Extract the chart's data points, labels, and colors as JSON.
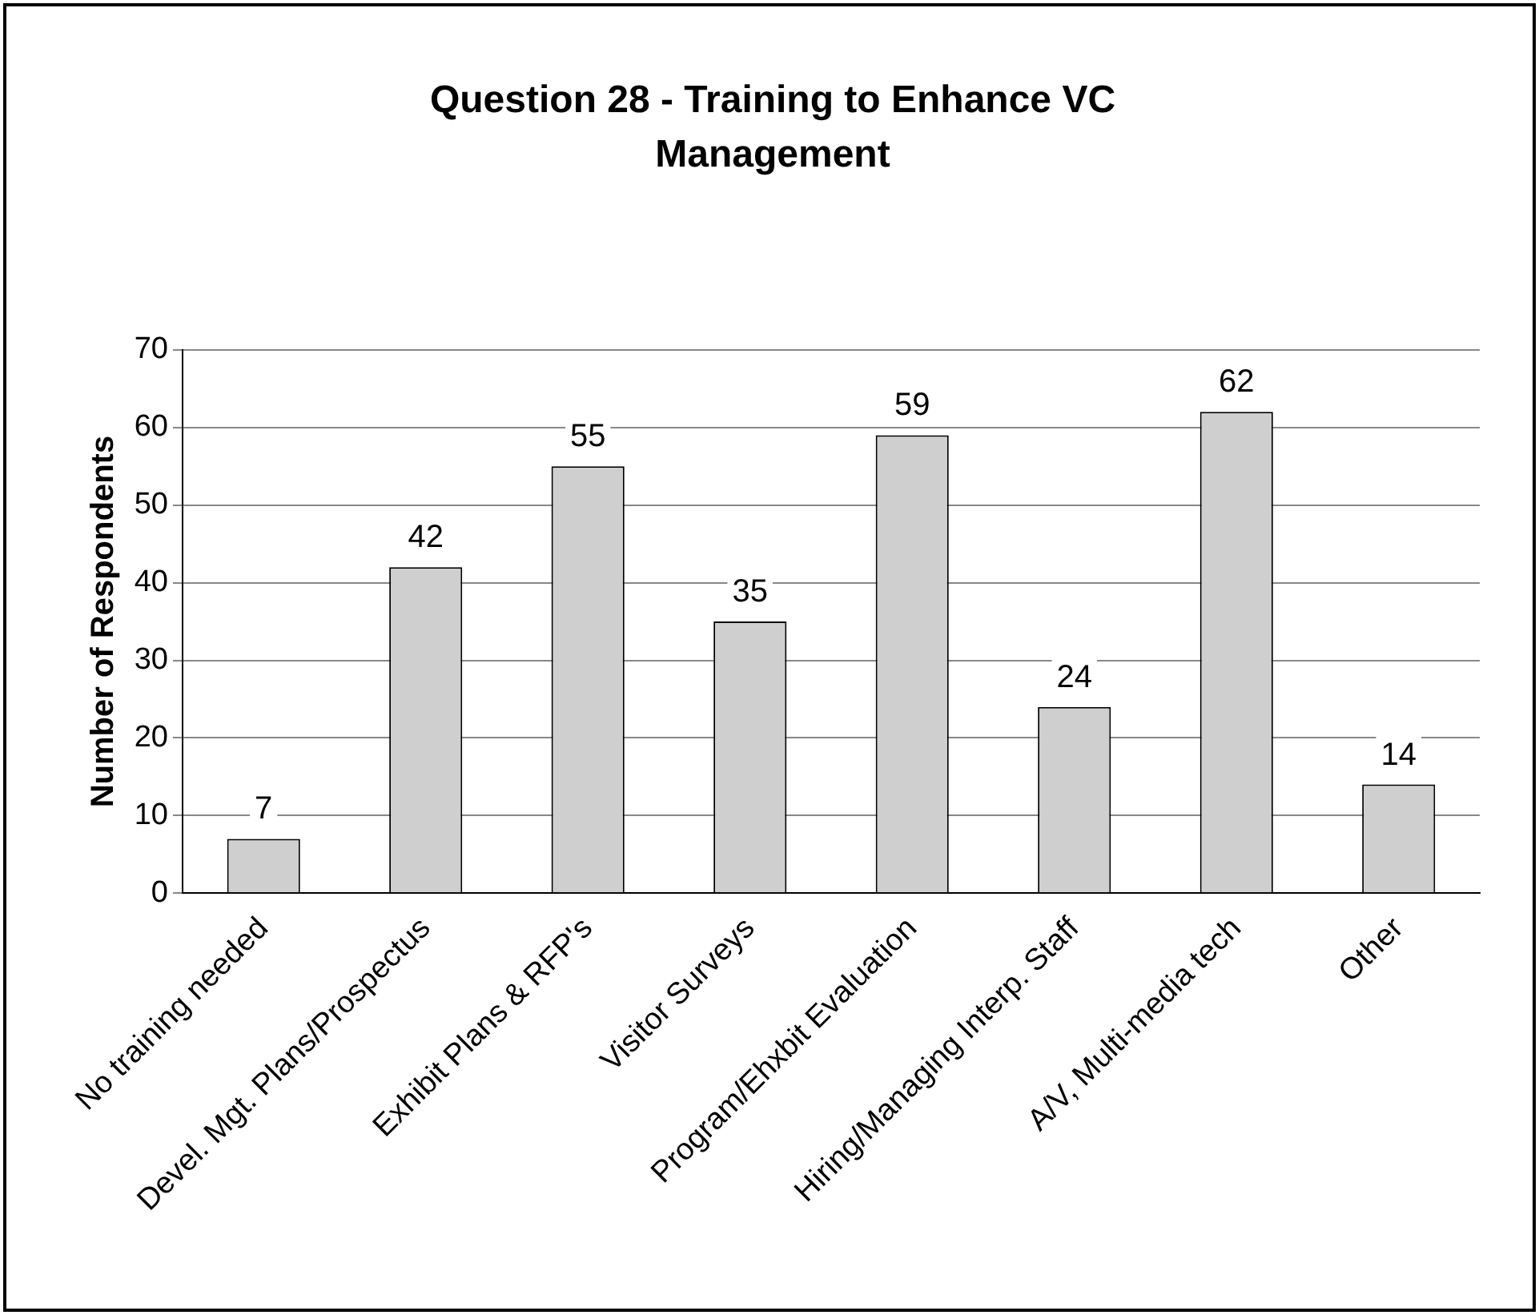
{
  "chart_data": {
    "type": "bar",
    "title": "Question 28 - Training to Enhance VC Management",
    "ylabel": "Number of Respondents",
    "categories": [
      "No training needed",
      "Devel. Mgt. Plans/Prospectus",
      "Exhibit Plans & RFP's",
      "Visitor Surveys",
      "Program/Ehxbit Evaluation",
      "Hiring/Managing Interp. Staff",
      "A/V, Multi-media tech",
      "Other"
    ],
    "values": [
      7,
      42,
      55,
      35,
      59,
      24,
      62,
      14
    ],
    "color": "#cfcfcf",
    "ylim": [
      0,
      70
    ],
    "yticks": [
      0,
      10,
      20,
      30,
      40,
      50,
      60,
      70
    ],
    "grid": "y",
    "data_labels": true,
    "legend": false
  }
}
